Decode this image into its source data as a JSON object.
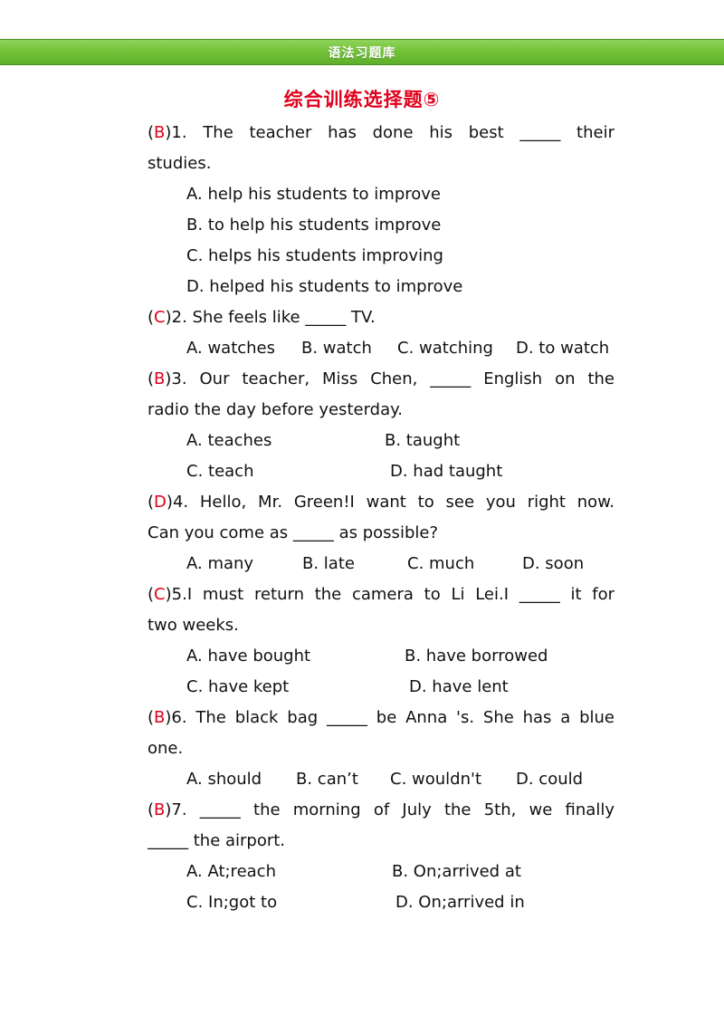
{
  "header": {
    "title": "语法习题库"
  },
  "page_title": "综合训练选择题⑤",
  "questions": [
    {
      "answer": "B",
      "lines": [
        "1. The teacher has done his best _____ their",
        "studies."
      ],
      "options": [
        "A. help his students to improve",
        "B. to help his students improve",
        "C. helps his students improving",
        "D. helped his students to improve"
      ]
    },
    {
      "answer": "C",
      "lines": [
        "2. She feels like _____ TV."
      ],
      "options": [
        "A. watches",
        "B. watch",
        "C. watching",
        "D. to watch"
      ]
    },
    {
      "answer": "B",
      "lines": [
        "3. Our teacher, Miss Chen, _____ English on the",
        "radio the day before yesterday."
      ],
      "options": [
        "A. teaches",
        "B. taught",
        "C. teach",
        "D. had taught"
      ]
    },
    {
      "answer": "D",
      "lines": [
        "4. Hello, Mr. Green!I want to see you right now.",
        "Can you come as _____ as possible?"
      ],
      "options": [
        "A. many",
        "B. late",
        "C. much",
        "D. soon"
      ]
    },
    {
      "answer": "C",
      "lines": [
        "5.I must return the camera to Li Lei.I _____ it for",
        "two weeks."
      ],
      "options": [
        "A. have bought",
        "B. have borrowed",
        "C. have kept",
        "D. have lent"
      ]
    },
    {
      "answer": "B",
      "lines": [
        "6. The black bag _____ be Anna 's. She has a blue",
        "one."
      ],
      "options": [
        "A. should",
        "B. can’t",
        "C. wouldn't",
        "D. could"
      ]
    },
    {
      "answer": "B",
      "lines": [
        "7. _____ the morning of July the 5th, we finally",
        "_____ the airport."
      ],
      "options": [
        "A. At;reach",
        "B. On;arrived at",
        "C. In;got to",
        "D. On;arrived in"
      ]
    }
  ]
}
